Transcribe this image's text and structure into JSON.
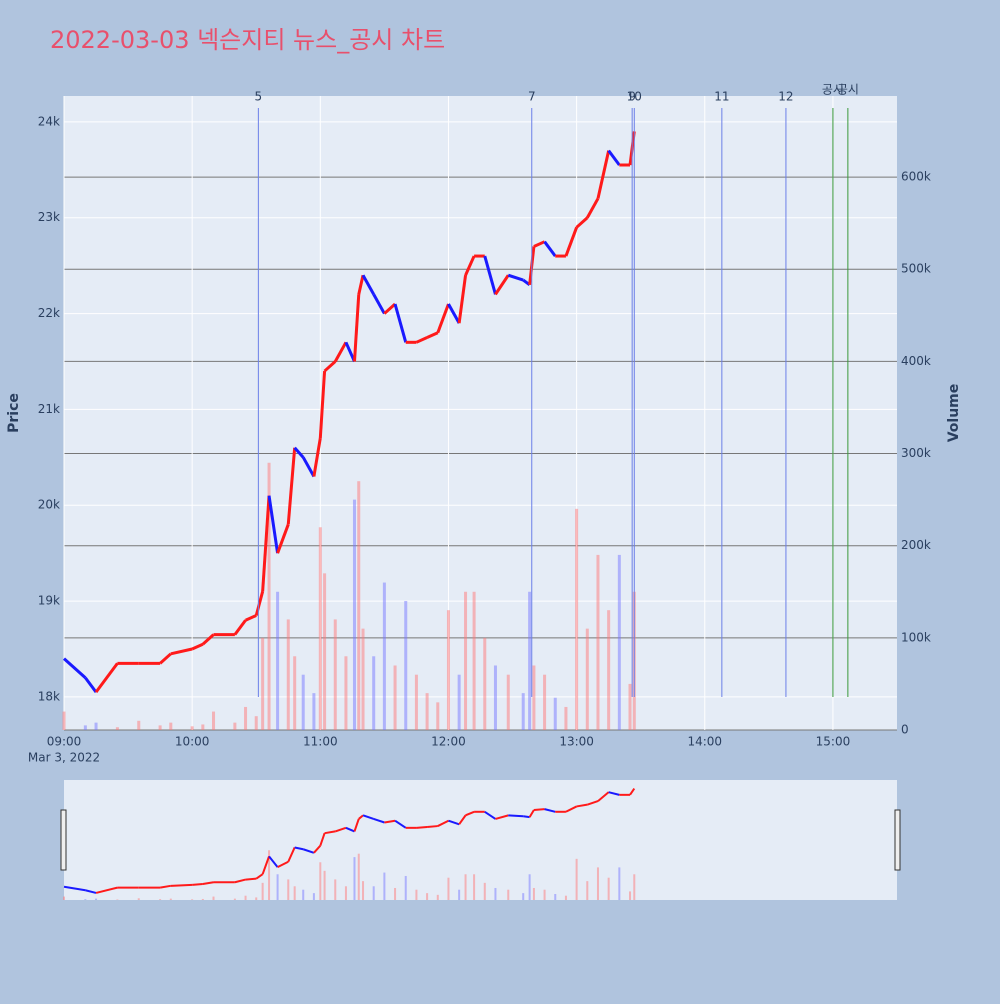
{
  "chart_data": {
    "type": "candle-line",
    "title": "2022-03-03 넥슨지티 뉴스_공시 차트",
    "x_date_label": "Mar 3, 2022",
    "y_label": "Price",
    "y2_label": "Volume",
    "x": [
      "09:00",
      "09:10",
      "09:15",
      "09:25",
      "09:35",
      "09:45",
      "09:50",
      "10:00",
      "10:05",
      "10:10",
      "10:20",
      "10:25",
      "10:30",
      "10:33",
      "10:36",
      "10:40",
      "10:45",
      "10:48",
      "10:52",
      "10:57",
      "11:00",
      "11:02",
      "11:07",
      "11:12",
      "11:16",
      "11:18",
      "11:20",
      "11:25",
      "11:30",
      "11:35",
      "11:40",
      "11:45",
      "11:50",
      "11:55",
      "12:00",
      "12:05",
      "12:08",
      "12:12",
      "12:17",
      "12:22",
      "12:28",
      "12:35",
      "12:38",
      "12:40",
      "12:45",
      "12:50",
      "12:55",
      "13:00",
      "13:05",
      "13:10",
      "13:15",
      "13:20",
      "13:25",
      "13:27"
    ],
    "series": [
      {
        "name": "Price",
        "up_color": "#ff1a1a",
        "down_color": "#1a1aff",
        "values": [
          18400,
          18200,
          18050,
          18350,
          18350,
          18350,
          18450,
          18500,
          18550,
          18650,
          18650,
          18800,
          18850,
          19100,
          20100,
          19500,
          19800,
          20600,
          20500,
          20300,
          20700,
          21400,
          21500,
          21700,
          21500,
          22200,
          22400,
          22200,
          22000,
          22100,
          21700,
          21700,
          21750,
          21800,
          22100,
          21900,
          22400,
          22600,
          22600,
          22200,
          22400,
          22350,
          22300,
          22700,
          22750,
          22600,
          22600,
          22900,
          23000,
          23200,
          23700,
          23550,
          23550,
          23900
        ]
      },
      {
        "name": "Volume",
        "axis": "y2",
        "up_color": "rgba(255,120,120,0.5)",
        "down_color": "rgba(120,120,255,0.5)",
        "values": [
          20000,
          5000,
          8000,
          3000,
          10000,
          5000,
          8000,
          4000,
          6000,
          20000,
          8000,
          25000,
          15000,
          100000,
          290000,
          150000,
          120000,
          80000,
          60000,
          40000,
          220000,
          170000,
          120000,
          80000,
          250000,
          270000,
          110000,
          80000,
          160000,
          70000,
          140000,
          60000,
          40000,
          30000,
          130000,
          60000,
          150000,
          150000,
          100000,
          70000,
          60000,
          40000,
          150000,
          70000,
          60000,
          35000,
          25000,
          240000,
          110000,
          190000,
          130000,
          190000,
          50000,
          150000
        ]
      }
    ],
    "xlim": [
      "09:00",
      "15:30"
    ],
    "xticks": [
      "09:00",
      "10:00",
      "11:00",
      "12:00",
      "13:00",
      "14:00",
      "15:00"
    ],
    "ylim": [
      17655,
      24270
    ],
    "yticks": [
      {
        "value": 18000,
        "label": "18k"
      },
      {
        "value": 19000,
        "label": "19k"
      },
      {
        "value": 20000,
        "label": "20k"
      },
      {
        "value": 21000,
        "label": "21k"
      },
      {
        "value": 22000,
        "label": "22k"
      },
      {
        "value": 23000,
        "label": "23k"
      },
      {
        "value": 24000,
        "label": "24k"
      }
    ],
    "y2lim": [
      0,
      688000
    ],
    "y2ticks": [
      0,
      {
        "value": 100000,
        "label": "100k"
      },
      {
        "value": 200000,
        "label": "200k"
      },
      {
        "value": 300000,
        "label": "300k"
      },
      {
        "value": 400000,
        "label": "400k"
      },
      {
        "value": 500000,
        "label": "500k"
      },
      {
        "value": 600000,
        "label": "600k"
      }
    ],
    "events": [
      {
        "x": "10:31",
        "label": "5",
        "color": "#6b7fe8"
      },
      {
        "x": "12:39",
        "label": "7",
        "color": "#6b7fe8"
      },
      {
        "x": "13:26",
        "label": "9",
        "color": "#6b7fe8"
      },
      {
        "x": "13:27",
        "label": "10",
        "color": "#6b7fe8"
      },
      {
        "x": "14:08",
        "label": "11",
        "color": "#6b7fe8"
      },
      {
        "x": "14:38",
        "label": "12",
        "color": "#6b7fe8"
      },
      {
        "x": "15:00",
        "label": "공시",
        "color": "#3a9a3a"
      },
      {
        "x": "15:07",
        "label": "공시",
        "color": "#3a9a3a"
      }
    ],
    "grid": true
  }
}
